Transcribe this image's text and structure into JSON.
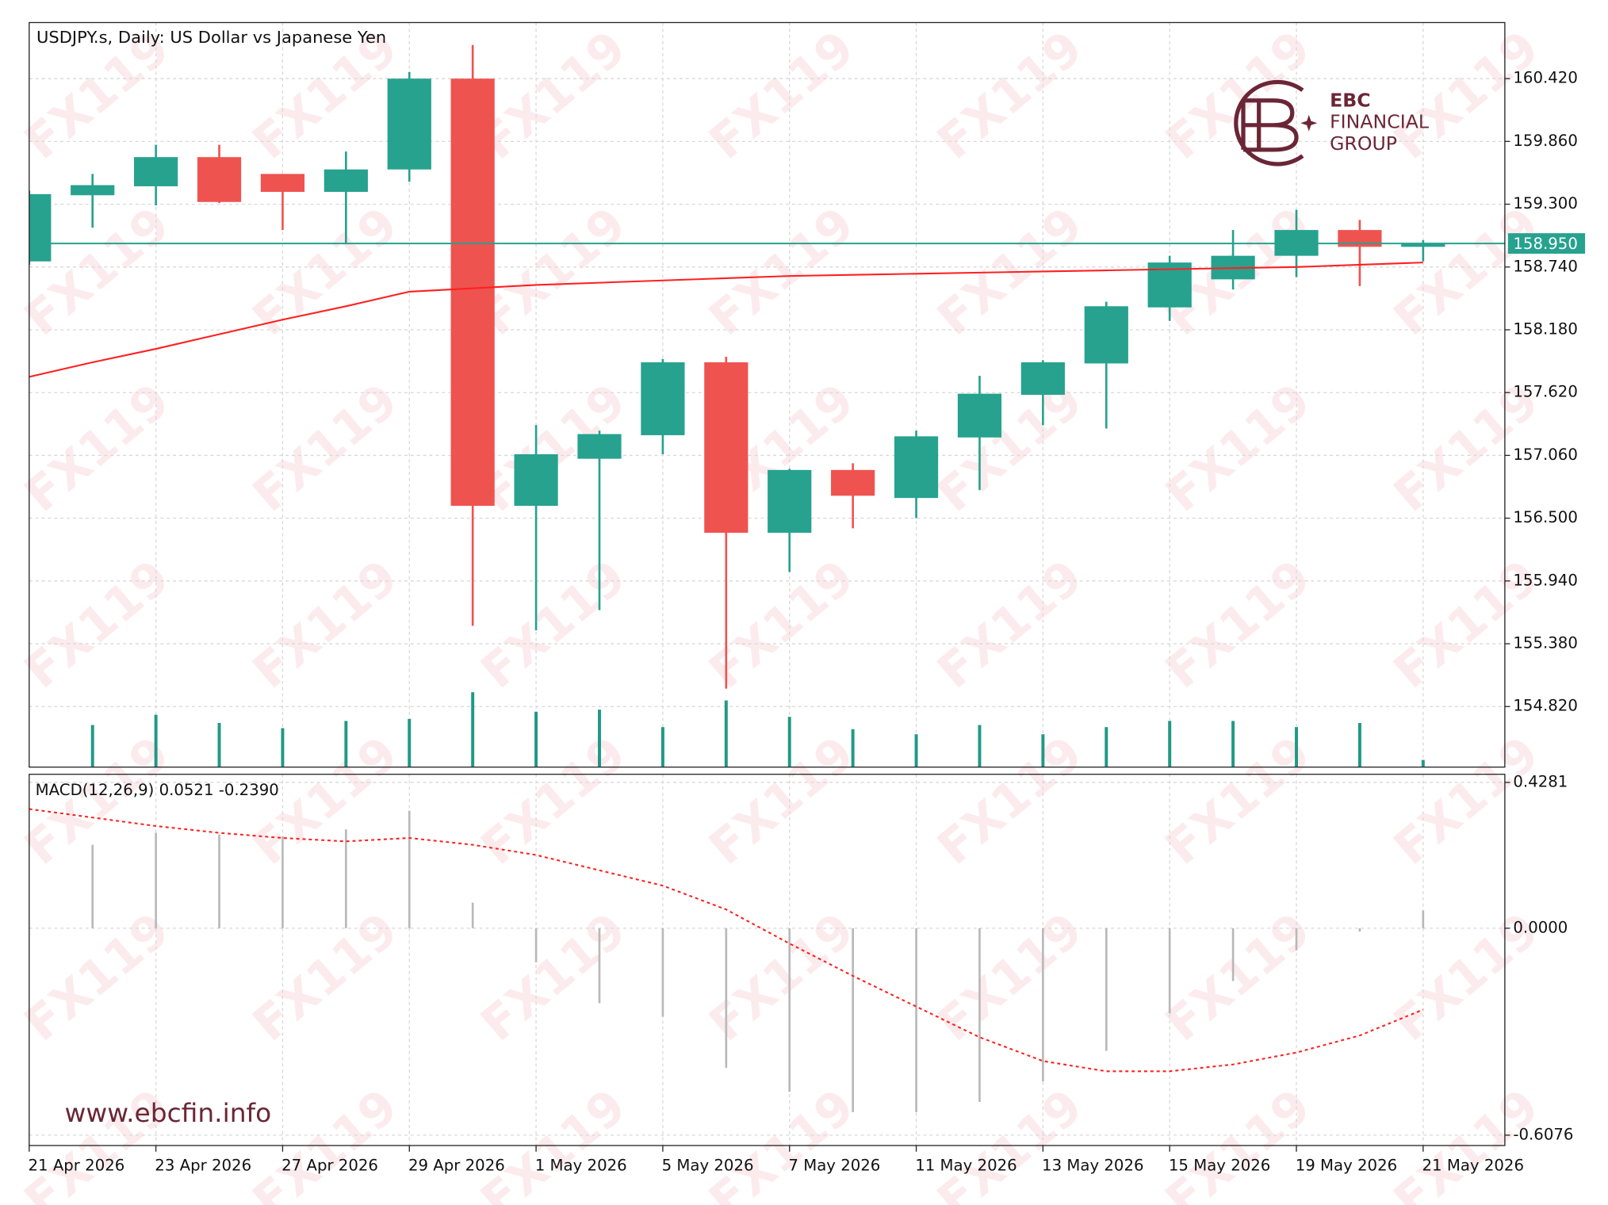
{
  "chart_data": [
    {
      "type": "candlestick",
      "title": "USDJPY.s, Daily:  US Dollar vs Japanese Yen",
      "categories": [
        "21 Apr 2026",
        null,
        "23 Apr 2026",
        null,
        "27 Apr 2026",
        null,
        "29 Apr 2026",
        null,
        "1 May 2026",
        null,
        "5 May 2026",
        null,
        "7 May 2026",
        null,
        "11 May 2026",
        null,
        "13 May 2026",
        null,
        "15 May 2026",
        null,
        "19 May 2026",
        null,
        "21 May 2026"
      ],
      "open": [
        158.79,
        159.38,
        159.46,
        159.72,
        159.57,
        159.41,
        159.61,
        160.42,
        156.61,
        157.03,
        157.24,
        157.89,
        156.37,
        156.93,
        156.68,
        157.22,
        157.6,
        157.88,
        158.38,
        158.63,
        158.84,
        159.07,
        158.92
      ],
      "high": [
        159.42,
        159.57,
        159.83,
        159.83,
        159.57,
        159.77,
        160.48,
        160.72,
        157.33,
        157.28,
        157.92,
        157.94,
        156.94,
        156.99,
        157.28,
        157.77,
        157.91,
        158.43,
        158.84,
        159.07,
        159.25,
        159.16,
        158.98
      ],
      "low": [
        158.76,
        159.09,
        159.29,
        159.31,
        159.07,
        158.95,
        159.5,
        155.54,
        155.5,
        155.68,
        157.07,
        154.98,
        156.02,
        156.41,
        156.5,
        156.75,
        157.33,
        157.3,
        158.26,
        158.54,
        158.65,
        158.57,
        158.79
      ],
      "close": [
        159.39,
        159.47,
        159.72,
        159.32,
        159.41,
        159.61,
        160.42,
        156.61,
        157.07,
        157.25,
        157.89,
        156.37,
        156.93,
        156.7,
        157.23,
        157.61,
        157.89,
        158.39,
        158.78,
        158.84,
        159.07,
        158.92,
        158.95
      ],
      "volume": [
        null,
        41,
        51,
        43,
        38,
        45,
        47,
        73,
        54,
        56,
        39,
        65,
        49,
        37,
        32,
        41,
        32,
        39,
        45,
        45,
        39,
        43,
        7
      ],
      "up_color": "#26a28f",
      "down_color": "#ef5350",
      "volume_color": "#1f9985",
      "moving_average": {
        "color": "#ff2020",
        "values": [
          157.76,
          157.89,
          158.01,
          158.14,
          158.27,
          158.39,
          158.52,
          158.55,
          158.58,
          158.6,
          158.62,
          158.64,
          158.66,
          158.67,
          158.68,
          158.69,
          158.7,
          158.71,
          158.72,
          158.73,
          158.74,
          158.76,
          158.78
        ]
      },
      "last_price": {
        "value": 158.95,
        "label": "158.950",
        "color": "#26a28f"
      },
      "ylim": [
        154.28,
        160.92
      ],
      "yticks": [
        {
          "value": 160.42,
          "label": "160.420"
        },
        {
          "value": 159.86,
          "label": "159.860"
        },
        {
          "value": 159.3,
          "label": "159.300"
        },
        {
          "value": 158.74,
          "label": "158.740"
        },
        {
          "value": 158.18,
          "label": "158.180"
        },
        {
          "value": 157.62,
          "label": "157.620"
        },
        {
          "value": 157.06,
          "label": "157.060"
        },
        {
          "value": 156.5,
          "label": "156.500"
        },
        {
          "value": 155.94,
          "label": "155.940"
        },
        {
          "value": 155.38,
          "label": "155.380"
        },
        {
          "value": 154.82,
          "label": "154.820"
        }
      ],
      "grid": true
    },
    {
      "type": "macd",
      "label": "MACD(12,26,9) 0.0521 -0.2390",
      "histogram": {
        "color": "#b8b8b8",
        "values": [
          null,
          0.245,
          0.28,
          0.275,
          0.27,
          0.29,
          0.345,
          0.075,
          -0.1,
          -0.22,
          -0.26,
          -0.41,
          -0.48,
          -0.54,
          -0.54,
          -0.51,
          -0.45,
          -0.36,
          -0.25,
          -0.155,
          -0.065,
          -0.01,
          0.0521
        ]
      },
      "signal": {
        "color": "#ff2020",
        "values": [
          0.35,
          0.325,
          0.3,
          0.28,
          0.265,
          0.255,
          0.265,
          0.245,
          0.215,
          0.17,
          0.125,
          0.055,
          -0.045,
          -0.14,
          -0.23,
          -0.32,
          -0.39,
          -0.42,
          -0.42,
          -0.4,
          -0.365,
          -0.315,
          -0.239
        ]
      },
      "ylim": [
        -0.638,
        0.452
      ],
      "yticks": [
        0.4281,
        {
          "value": 0,
          "label": "0.0000"
        },
        -0.6076
      ]
    }
  ],
  "watermark": "FX119",
  "logo": {
    "line1": "EBC",
    "line2": "FINANCIAL",
    "line3": "GROUP"
  },
  "website": "www.ebcfin.info"
}
